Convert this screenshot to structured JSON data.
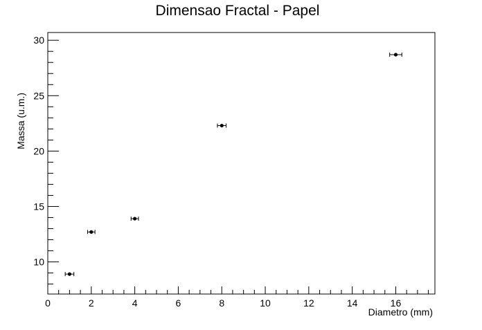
{
  "chart_data": {
    "type": "scatter",
    "title": "Dimensao Fractal - Papel",
    "xlabel": "Diametro (mm)",
    "ylabel": "Massa (u.m.)",
    "xlim": [
      0,
      17.8
    ],
    "ylim": [
      7.1,
      30.7
    ],
    "x_ticks": [
      0,
      2,
      4,
      6,
      8,
      10,
      12,
      14,
      16
    ],
    "y_ticks": [
      10,
      15,
      20,
      25,
      30
    ],
    "grid": false,
    "marker": "filled-circle",
    "error_bars": "horizontal",
    "series": [
      {
        "x": [
          1,
          2,
          4,
          8,
          16
        ],
        "y": [
          8.9,
          12.7,
          13.9,
          22.3,
          28.7
        ],
        "x_err": [
          0.2,
          0.17,
          0.17,
          0.2,
          0.28
        ]
      }
    ],
    "colors": {
      "marker": "#000000",
      "axis": "#000000",
      "background": "#ffffff"
    }
  }
}
